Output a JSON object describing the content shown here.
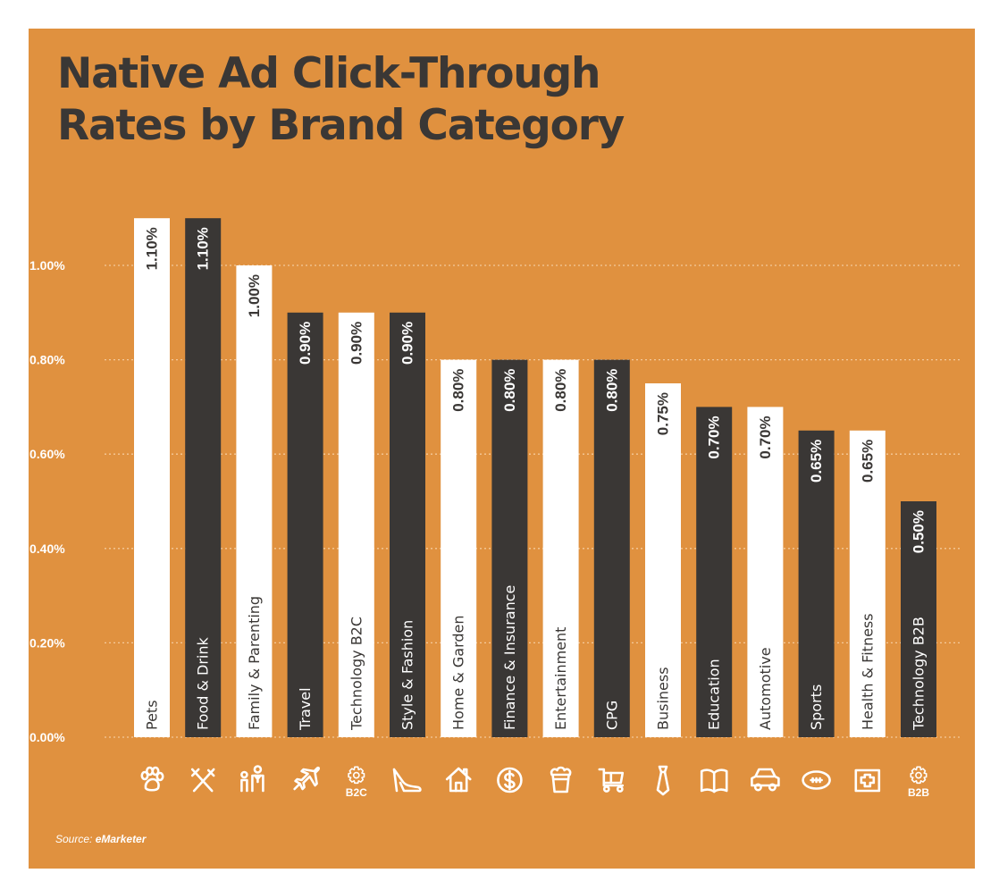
{
  "title_lines": [
    "Native Ad Click-Through",
    "Rates by Brand Category"
  ],
  "source": {
    "prefix": "Source: ",
    "name": "eMarketer"
  },
  "colors": {
    "background": "#E0913F",
    "bar_light": "#FFFFFF",
    "bar_dark": "#3A3735",
    "text_dark": "#3A3735",
    "text_light": "#FFFFFF",
    "grid": "#F4C99A"
  },
  "chart_data": {
    "type": "bar",
    "title": "Native Ad Click-Through Rates by Brand Category",
    "xlabel": "",
    "ylabel": "",
    "orientation": "vertical",
    "ylim": [
      0,
      1.1
    ],
    "yticks": [
      0,
      0.2,
      0.4,
      0.6,
      0.8,
      1.0
    ],
    "ytick_labels": [
      "0.00%",
      "0.20%",
      "0.40%",
      "0.60%",
      "0.80%",
      "1.00%"
    ],
    "grid": "horizontal dotted",
    "legend": "none",
    "categories": [
      "Pets",
      "Food & Drink",
      "Family & Parenting",
      "Travel",
      "Technology B2C",
      "Style & Fashion",
      "Home & Garden",
      "Finance & Insurance",
      "Entertainment",
      "CPG",
      "Business",
      "Education",
      "Automotive",
      "Sports",
      "Health & Fitness",
      "Technology B2B"
    ],
    "values": [
      1.1,
      1.1,
      1.0,
      0.9,
      0.9,
      0.9,
      0.8,
      0.8,
      0.8,
      0.8,
      0.75,
      0.7,
      0.7,
      0.65,
      0.65,
      0.5
    ],
    "value_labels": [
      "1.10%",
      "1.10%",
      "1.00%",
      "0.90%",
      "0.90%",
      "0.90%",
      "0.80%",
      "0.80%",
      "0.80%",
      "0.80%",
      "0.75%",
      "0.70%",
      "0.70%",
      "0.65%",
      "0.65%",
      "0.50%"
    ],
    "bar_styles": [
      "light",
      "dark",
      "light",
      "dark",
      "light",
      "dark",
      "light",
      "dark",
      "light",
      "dark",
      "light",
      "dark",
      "light",
      "dark",
      "light",
      "dark"
    ],
    "icons": [
      "paw-icon",
      "fork-knife-icon",
      "family-icon",
      "airplane-icon",
      "gear-b2c-icon",
      "high-heel-icon",
      "house-icon",
      "dollar-coin-icon",
      "popcorn-icon",
      "shopping-cart-icon",
      "necktie-icon",
      "open-book-icon",
      "car-icon",
      "football-icon",
      "first-aid-icon",
      "gear-b2b-icon"
    ],
    "icon_labels": {
      "gear-b2c-icon": "B2C",
      "gear-b2b-icon": "B2B"
    }
  }
}
